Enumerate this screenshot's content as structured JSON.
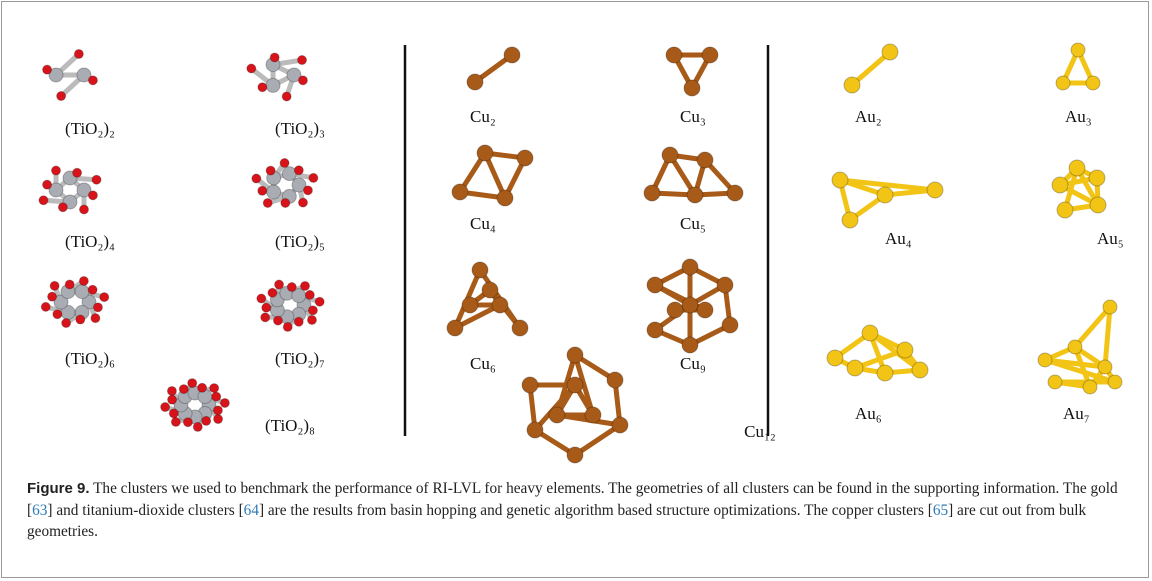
{
  "figure": {
    "labels": {
      "tio2": [
        "(TiO₂)₂",
        "(TiO₂)₃",
        "(TiO₂)₄",
        "(TiO₂)₅",
        "(TiO₂)₆",
        "(TiO₂)₇",
        "(TiO₂)₈"
      ],
      "cu": [
        "Cu₂",
        "Cu₃",
        "Cu₄",
        "Cu₅",
        "Cu₆",
        "Cu₉",
        "Cu₁₂"
      ],
      "au": [
        "Au₂",
        "Au₃",
        "Au₄",
        "Au₅",
        "Au₆",
        "Au₇"
      ]
    }
  },
  "caption": {
    "label": "Figure 9.",
    "parts": [
      "The clusters we used to benchmark the performance of RI-LVL for heavy elements. The geometries of all clusters can be found in the supporting information. The gold [",
      "63",
      "] and titanium-dioxide clusters [",
      "64",
      "] are the results from basin hopping and genetic algorithm based structure optimizations. The copper clusters [",
      "65",
      "] are cut out from bulk geometries."
    ]
  }
}
